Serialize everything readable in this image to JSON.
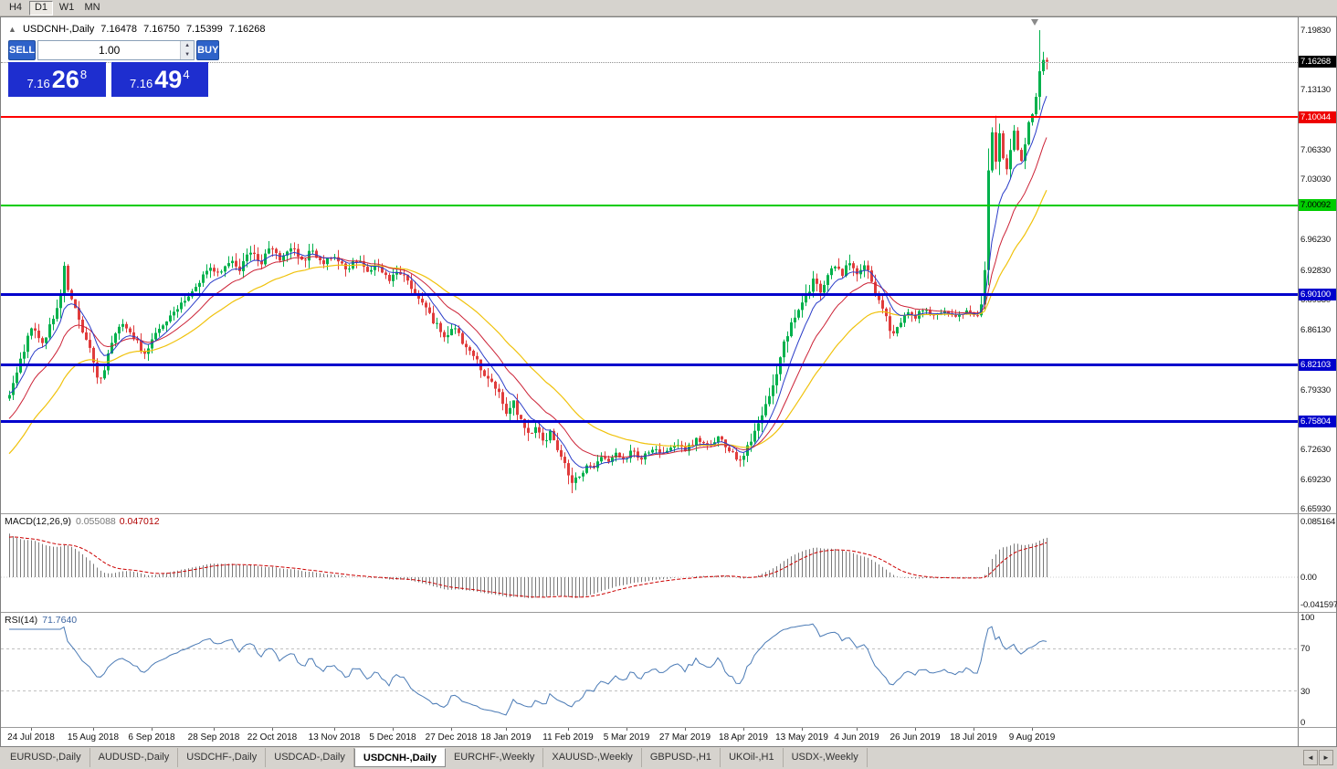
{
  "toolbar": {
    "buttons": [
      {
        "label": "H4",
        "active": false
      },
      {
        "label": "D1",
        "active": true
      },
      {
        "label": "W1",
        "active": false
      },
      {
        "label": "MN",
        "active": false
      }
    ]
  },
  "chart_header": {
    "collapse_icon": "▲",
    "symbol": "USDCNH-,Daily",
    "open": "7.16478",
    "high": "7.16750",
    "low": "7.15399",
    "close": "7.16268"
  },
  "one_click": {
    "sell_label": "SELL",
    "buy_label": "BUY",
    "volume": "1.00",
    "button_color": "#2e62c9",
    "price_box_color": "#1e2ecf",
    "sell_price": {
      "base": "7.16",
      "pips": "26",
      "pt": "8"
    },
    "buy_price": {
      "base": "7.16",
      "pips": "49",
      "pt": "4"
    },
    "spin_up_icon": "▲",
    "spin_down_icon": "▼"
  },
  "indicators": {
    "macd": {
      "label": "MACD(12,26,9)",
      "value1": "0.055088",
      "value2": "0.047012",
      "axis": [
        {
          "label": "0.085164",
          "value": 0.085164
        },
        {
          "label": "0.00",
          "value": 0
        },
        {
          "label": "-0.041597",
          "value": -0.041597
        }
      ]
    },
    "rsi": {
      "label": "RSI(14)",
      "value": "71.7640",
      "axis": [
        {
          "label": "100",
          "value": 100
        },
        {
          "label": "70",
          "value": 70
        },
        {
          "label": "30",
          "value": 30
        },
        {
          "label": "0",
          "value": 0
        }
      ],
      "levels": [
        70,
        30
      ]
    }
  },
  "price_axis": {
    "labels": [
      "7.19830",
      "7.13130",
      "7.06330",
      "7.03030",
      "6.96230",
      "6.92830",
      "6.89530",
      "6.86130",
      "6.79330",
      "6.72630",
      "6.69230",
      "6.65930"
    ],
    "badges": [
      {
        "label": "7.16268",
        "bg": "#000000",
        "fg": "#ffffff"
      },
      {
        "label": "7.10044",
        "bg": "#ee0000",
        "fg": "#ffffff"
      },
      {
        "label": "7.00092",
        "bg": "#00cc00",
        "fg": "#000000"
      },
      {
        "label": "6.90100",
        "bg": "#0000cc",
        "fg": "#ffffff"
      },
      {
        "label": "6.82103",
        "bg": "#0000cc",
        "fg": "#ffffff"
      },
      {
        "label": "6.75804",
        "bg": "#0000cc",
        "fg": "#ffffff"
      }
    ]
  },
  "chart_data": {
    "type": "candlestick",
    "symbol": "USDCNH",
    "timeframe": "Daily",
    "title": "USDCNH-,Daily",
    "ohlc_current": {
      "open": 7.16478,
      "high": 7.1675,
      "low": 7.15399,
      "close": 7.16268
    },
    "main_scale": {
      "max": 7.2127,
      "min": 6.6542
    },
    "macd_scale": {
      "max": 0.0964,
      "min": -0.0531
    },
    "rsi_scale": {
      "max": 104.3,
      "min": -4.3
    },
    "hlines": [
      {
        "price": 7.16268,
        "color": "#909090",
        "width": 1,
        "style": "dotted",
        "name": "last-price"
      },
      {
        "price": 7.10044,
        "color": "#ff0000",
        "width": 2,
        "style": "solid",
        "name": "resistance-7-10044"
      },
      {
        "price": 7.00092,
        "color": "#00cc00",
        "width": 2,
        "style": "solid",
        "name": "level-7-00092"
      },
      {
        "price": 6.901,
        "color": "#0000cc",
        "width": 3,
        "style": "solid",
        "name": "support-6-90100"
      },
      {
        "price": 6.82103,
        "color": "#0000cc",
        "width": 3,
        "style": "solid",
        "name": "support-6-82103"
      },
      {
        "price": 6.75804,
        "color": "#0000cc",
        "width": 3,
        "style": "solid",
        "name": "support-6-75804"
      }
    ],
    "colors": {
      "up": "#00b14c",
      "down": "#e03c3c",
      "ma_fast": "#2a3cc8",
      "ma_mid": "#cc2236",
      "ma_slow": "#f0c20c",
      "macd_hist": "#7a7a7a",
      "macd_signal": "#cc0000",
      "rsi": "#4a7ab5",
      "levels": "#c0c0c0"
    },
    "ma_periods": {
      "fast": 8,
      "mid": 17,
      "slow": 34
    },
    "candle_count": 285,
    "seed": 20190904,
    "last_close": 7.16268,
    "session_high": 7.1983,
    "session_high_index": 282,
    "price_anchors": [
      [
        0,
        6.79,
        0.016
      ],
      [
        3,
        6.826,
        0.018
      ],
      [
        6,
        6.866,
        0.02
      ],
      [
        9,
        6.846,
        0.018
      ],
      [
        12,
        6.872,
        0.02
      ],
      [
        14,
        6.9,
        0.028
      ],
      [
        15,
        6.93,
        0.034
      ],
      [
        16,
        6.906,
        0.026
      ],
      [
        18,
        6.886,
        0.02
      ],
      [
        20,
        6.86,
        0.02
      ],
      [
        22,
        6.84,
        0.022
      ],
      [
        24,
        6.803,
        0.026
      ],
      [
        26,
        6.818,
        0.02
      ],
      [
        28,
        6.846,
        0.018
      ],
      [
        31,
        6.87,
        0.016
      ],
      [
        34,
        6.852,
        0.016
      ],
      [
        37,
        6.834,
        0.018
      ],
      [
        40,
        6.856,
        0.016
      ],
      [
        43,
        6.87,
        0.016
      ],
      [
        46,
        6.886,
        0.016
      ],
      [
        49,
        6.9,
        0.018
      ],
      [
        52,
        6.916,
        0.018
      ],
      [
        55,
        6.93,
        0.02
      ],
      [
        58,
        6.924,
        0.018
      ],
      [
        60,
        6.94,
        0.02
      ],
      [
        63,
        6.928,
        0.018
      ],
      [
        66,
        6.95,
        0.02
      ],
      [
        69,
        6.938,
        0.018
      ],
      [
        72,
        6.956,
        0.022
      ],
      [
        74,
        6.942,
        0.018
      ],
      [
        77,
        6.954,
        0.018
      ],
      [
        80,
        6.938,
        0.018
      ],
      [
        83,
        6.95,
        0.018
      ],
      [
        86,
        6.934,
        0.018
      ],
      [
        89,
        6.946,
        0.02
      ],
      [
        92,
        6.93,
        0.018
      ],
      [
        95,
        6.94,
        0.018
      ],
      [
        98,
        6.924,
        0.016
      ],
      [
        101,
        6.934,
        0.016
      ],
      [
        104,
        6.916,
        0.018
      ],
      [
        107,
        6.926,
        0.018
      ],
      [
        110,
        6.906,
        0.018
      ],
      [
        113,
        6.888,
        0.02
      ],
      [
        116,
        6.872,
        0.02
      ],
      [
        119,
        6.85,
        0.022
      ],
      [
        122,
        6.862,
        0.02
      ],
      [
        125,
        6.842,
        0.018
      ],
      [
        128,
        6.826,
        0.02
      ],
      [
        131,
        6.806,
        0.02
      ],
      [
        134,
        6.788,
        0.02
      ],
      [
        136,
        6.77,
        0.022
      ],
      [
        138,
        6.78,
        0.018
      ],
      [
        140,
        6.758,
        0.02
      ],
      [
        142,
        6.74,
        0.024
      ],
      [
        144,
        6.75,
        0.018
      ],
      [
        146,
        6.734,
        0.018
      ],
      [
        148,
        6.744,
        0.016
      ],
      [
        150,
        6.728,
        0.018
      ],
      [
        152,
        6.712,
        0.02
      ],
      [
        154,
        6.684,
        0.024
      ],
      [
        156,
        6.696,
        0.018
      ],
      [
        158,
        6.71,
        0.016
      ],
      [
        160,
        6.702,
        0.016
      ],
      [
        162,
        6.718,
        0.016
      ],
      [
        164,
        6.71,
        0.014
      ],
      [
        166,
        6.722,
        0.014
      ],
      [
        168,
        6.714,
        0.014
      ],
      [
        170,
        6.724,
        0.014
      ],
      [
        173,
        6.717,
        0.014
      ],
      [
        176,
        6.728,
        0.014
      ],
      [
        179,
        6.721,
        0.014
      ],
      [
        182,
        6.733,
        0.014
      ],
      [
        185,
        6.726,
        0.014
      ],
      [
        188,
        6.737,
        0.014
      ],
      [
        191,
        6.729,
        0.014
      ],
      [
        194,
        6.739,
        0.014
      ],
      [
        197,
        6.725,
        0.014
      ],
      [
        200,
        6.714,
        0.016
      ],
      [
        202,
        6.73,
        0.018
      ],
      [
        204,
        6.744,
        0.02
      ],
      [
        206,
        6.76,
        0.024
      ],
      [
        208,
        6.788,
        0.028
      ],
      [
        210,
        6.816,
        0.028
      ],
      [
        212,
        6.842,
        0.026
      ],
      [
        214,
        6.866,
        0.024
      ],
      [
        216,
        6.884,
        0.022
      ],
      [
        218,
        6.9,
        0.022
      ],
      [
        220,
        6.916,
        0.02
      ],
      [
        222,
        6.906,
        0.018
      ],
      [
        224,
        6.92,
        0.02
      ],
      [
        226,
        6.933,
        0.02
      ],
      [
        228,
        6.923,
        0.018
      ],
      [
        230,
        6.936,
        0.02
      ],
      [
        232,
        6.926,
        0.018
      ],
      [
        234,
        6.933,
        0.018
      ],
      [
        236,
        6.916,
        0.02
      ],
      [
        238,
        6.896,
        0.022
      ],
      [
        240,
        6.872,
        0.024
      ],
      [
        242,
        6.856,
        0.022
      ],
      [
        244,
        6.868,
        0.018
      ],
      [
        246,
        6.88,
        0.018
      ],
      [
        248,
        6.874,
        0.016
      ],
      [
        250,
        6.884,
        0.014
      ],
      [
        253,
        6.877,
        0.012
      ],
      [
        256,
        6.883,
        0.012
      ],
      [
        259,
        6.876,
        0.012
      ],
      [
        262,
        6.882,
        0.012
      ],
      [
        265,
        6.878,
        0.012
      ],
      [
        266,
        6.89,
        0.02
      ],
      [
        267,
        6.93,
        0.045
      ],
      [
        268,
        7.042,
        0.052
      ],
      [
        269,
        7.092,
        0.046
      ],
      [
        270,
        7.052,
        0.038
      ],
      [
        271,
        7.078,
        0.032
      ],
      [
        272,
        7.058,
        0.028
      ],
      [
        273,
        7.044,
        0.028
      ],
      [
        274,
        7.068,
        0.026
      ],
      [
        275,
        7.088,
        0.026
      ],
      [
        276,
        7.062,
        0.024
      ],
      [
        277,
        7.048,
        0.024
      ],
      [
        278,
        7.072,
        0.022
      ],
      [
        279,
        7.092,
        0.022
      ],
      [
        280,
        7.108,
        0.022
      ],
      [
        281,
        7.126,
        0.024
      ],
      [
        282,
        7.152,
        0.03
      ],
      [
        283,
        7.146,
        0.022
      ],
      [
        284,
        7.16268,
        0.018
      ]
    ],
    "date_labels": [
      {
        "label": "24 Jul 2018",
        "i": 6
      },
      {
        "label": "15 Aug 2018",
        "i": 23
      },
      {
        "label": "6 Sep 2018",
        "i": 39
      },
      {
        "label": "28 Sep 2018",
        "i": 56
      },
      {
        "label": "22 Oct 2018",
        "i": 72
      },
      {
        "label": "13 Nov 2018",
        "i": 89
      },
      {
        "label": "5 Dec 2018",
        "i": 105
      },
      {
        "label": "27 Dec 2018",
        "i": 121
      },
      {
        "label": "18 Jan 2019",
        "i": 136
      },
      {
        "label": "11 Feb 2019",
        "i": 153
      },
      {
        "label": "5 Mar 2019",
        "i": 169
      },
      {
        "label": "27 Mar 2019",
        "i": 185
      },
      {
        "label": "18 Apr 2019",
        "i": 201
      },
      {
        "label": "13 May 2019",
        "i": 217
      },
      {
        "label": "4 Jun 2019",
        "i": 232
      },
      {
        "label": "26 Jun 2019",
        "i": 248
      },
      {
        "label": "18 Jul 2019",
        "i": 264
      },
      {
        "label": "9 Aug 2019",
        "i": 280
      }
    ]
  },
  "bottom_tabs": {
    "items": [
      "EURUSD-,Daily",
      "AUDUSD-,Daily",
      "USDCHF-,Daily",
      "USDCAD-,Daily",
      "USDCNH-,Daily",
      "EURCHF-,Weekly",
      "XAUUSD-,Weekly",
      "GBPUSD-,H1",
      "UKOil-,H1",
      "USDX-,Weekly"
    ],
    "active": "USDCNH-,Daily",
    "scroll_left_icon": "◄",
    "scroll_right_icon": "►"
  }
}
